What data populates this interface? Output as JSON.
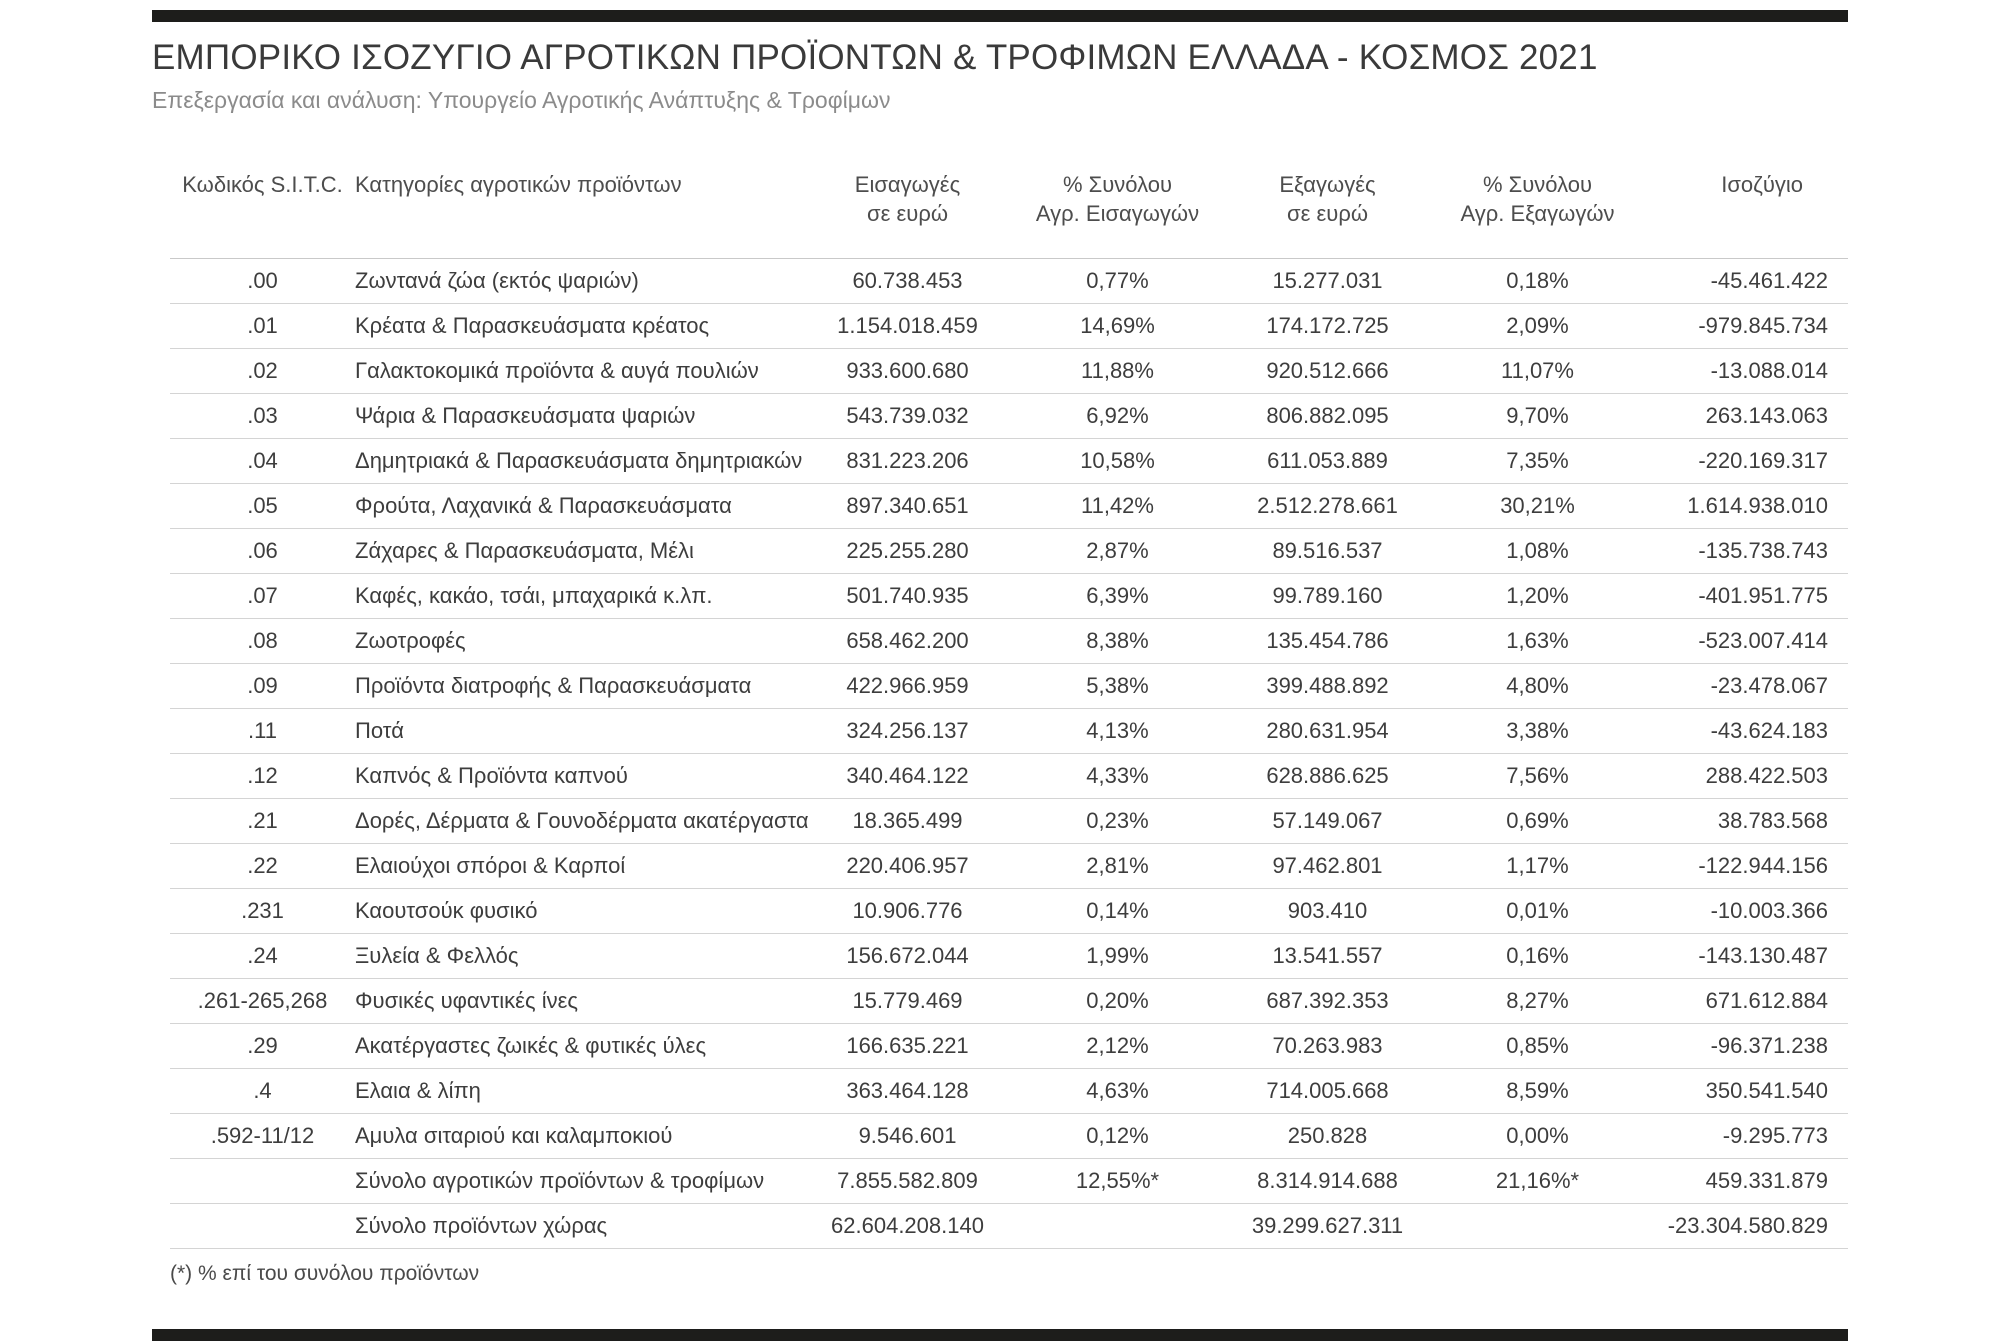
{
  "page": {
    "title": "ΕΜΠΟΡΙΚΟ ΙΣΟΖΥΓΙΟ ΑΓΡΟΤΙΚΩΝ ΠΡΟΪΟΝΤΩΝ & ΤΡΟΦΙΜΩΝ ΕΛΛΑΔΑ - ΚΟΣΜΟΣ 2021",
    "subtitle": "Επεξεργασία και ανάλυση: Υπουργείο Αγροτικής Ανάπτυξης & Τροφίμων",
    "footnote": "(*) % επί του συνόλου προϊόντων",
    "accent_bar_color": "#1d1d1b"
  },
  "table": {
    "columns": [
      {
        "id": "code",
        "label_lines": [
          "Κωδικός S.I.T.C."
        ]
      },
      {
        "id": "category",
        "label_lines": [
          "Κατηγορίες αγροτικών προϊόντων"
        ]
      },
      {
        "id": "imports",
        "label_lines": [
          "Εισαγωγές",
          "σε ευρώ"
        ]
      },
      {
        "id": "imports_pct",
        "label_lines": [
          "% Συνόλου",
          "Αγρ. Εισαγωγών"
        ]
      },
      {
        "id": "exports",
        "label_lines": [
          "Εξαγωγές",
          "σε ευρώ"
        ]
      },
      {
        "id": "exports_pct",
        "label_lines": [
          "% Συνόλου",
          "Αγρ. Εξαγωγών"
        ]
      },
      {
        "id": "balance",
        "label_lines": [
          "Ισοζύγιο"
        ]
      }
    ],
    "rows": [
      {
        "code": ".00",
        "category": "Ζωντανά ζώα (εκτός ψαριών)",
        "imports": "60.738.453",
        "imports_pct": "0,77%",
        "exports": "15.277.031",
        "exports_pct": "0,18%",
        "balance": "-45.461.422"
      },
      {
        "code": ".01",
        "category": "Κρέατα & Παρασκευάσματα κρέατος",
        "imports": "1.154.018.459",
        "imports_pct": "14,69%",
        "exports": "174.172.725",
        "exports_pct": "2,09%",
        "balance": "-979.845.734"
      },
      {
        "code": ".02",
        "category": "Γαλακτοκομικά προϊόντα & αυγά πουλιών",
        "imports": "933.600.680",
        "imports_pct": "11,88%",
        "exports": "920.512.666",
        "exports_pct": "11,07%",
        "balance": "-13.088.014"
      },
      {
        "code": ".03",
        "category": "Ψάρια & Παρασκευάσματα ψαριών",
        "imports": "543.739.032",
        "imports_pct": "6,92%",
        "exports": "806.882.095",
        "exports_pct": "9,70%",
        "balance": "263.143.063"
      },
      {
        "code": ".04",
        "category": "Δημητριακά & Παρασκευάσματα δημητριακών",
        "imports": "831.223.206",
        "imports_pct": "10,58%",
        "exports": "611.053.889",
        "exports_pct": "7,35%",
        "balance": "-220.169.317"
      },
      {
        "code": ".05",
        "category": "Φρούτα, Λαχανικά & Παρασκευάσματα",
        "imports": "897.340.651",
        "imports_pct": "11,42%",
        "exports": "2.512.278.661",
        "exports_pct": "30,21%",
        "balance": "1.614.938.010"
      },
      {
        "code": ".06",
        "category": "Ζάχαρες & Παρασκευάσματα, Μέλι",
        "imports": "225.255.280",
        "imports_pct": "2,87%",
        "exports": "89.516.537",
        "exports_pct": "1,08%",
        "balance": "-135.738.743"
      },
      {
        "code": ".07",
        "category": "Καφές, κακάο, τσάι, μπαχαρικά κ.λπ.",
        "imports": "501.740.935",
        "imports_pct": "6,39%",
        "exports": "99.789.160",
        "exports_pct": "1,20%",
        "balance": "-401.951.775"
      },
      {
        "code": ".08",
        "category": "Ζωοτροφές",
        "imports": "658.462.200",
        "imports_pct": "8,38%",
        "exports": "135.454.786",
        "exports_pct": "1,63%",
        "balance": "-523.007.414"
      },
      {
        "code": ".09",
        "category": "Προϊόντα διατροφής & Παρασκευάσματα",
        "imports": "422.966.959",
        "imports_pct": "5,38%",
        "exports": "399.488.892",
        "exports_pct": "4,80%",
        "balance": "-23.478.067"
      },
      {
        "code": ".11",
        "category": "Ποτά",
        "imports": "324.256.137",
        "imports_pct": "4,13%",
        "exports": "280.631.954",
        "exports_pct": "3,38%",
        "balance": "-43.624.183"
      },
      {
        "code": ".12",
        "category": "Καπνός & Προϊόντα καπνού",
        "imports": "340.464.122",
        "imports_pct": "4,33%",
        "exports": "628.886.625",
        "exports_pct": "7,56%",
        "balance": "288.422.503"
      },
      {
        "code": ".21",
        "category": "Δορές, Δέρματα & Γουνοδέρματα ακατέργαστα",
        "imports": "18.365.499",
        "imports_pct": "0,23%",
        "exports": "57.149.067",
        "exports_pct": "0,69%",
        "balance": "38.783.568"
      },
      {
        "code": ".22",
        "category": "Ελαιούχοι σπόροι & Καρποί",
        "imports": "220.406.957",
        "imports_pct": "2,81%",
        "exports": "97.462.801",
        "exports_pct": "1,17%",
        "balance": "-122.944.156"
      },
      {
        "code": ".231",
        "category": "Καουτσούκ φυσικό",
        "imports": "10.906.776",
        "imports_pct": "0,14%",
        "exports": "903.410",
        "exports_pct": "0,01%",
        "balance": "-10.003.366"
      },
      {
        "code": ".24",
        "category": "Ξυλεία & Φελλός",
        "imports": "156.672.044",
        "imports_pct": "1,99%",
        "exports": "13.541.557",
        "exports_pct": "0,16%",
        "balance": "-143.130.487"
      },
      {
        "code": ".261-265,268",
        "category": "Φυσικές υφαντικές ίνες",
        "imports": "15.779.469",
        "imports_pct": "0,20%",
        "exports": "687.392.353",
        "exports_pct": "8,27%",
        "balance": "671.612.884"
      },
      {
        "code": ".29",
        "category": "Ακατέργαστες ζωικές & φυτικές ύλες",
        "imports": "166.635.221",
        "imports_pct": "2,12%",
        "exports": "70.263.983",
        "exports_pct": "0,85%",
        "balance": "-96.371.238"
      },
      {
        "code": ".4",
        "category": "Ελαια & λίπη",
        "imports": "363.464.128",
        "imports_pct": "4,63%",
        "exports": "714.005.668",
        "exports_pct": "8,59%",
        "balance": "350.541.540"
      },
      {
        "code": ".592-11/12",
        "category": "Αμυλα σιταριού και καλαμποκιού",
        "imports": "9.546.601",
        "imports_pct": "0,12%",
        "exports": "250.828",
        "exports_pct": "0,00%",
        "balance": "-9.295.773"
      },
      {
        "code": "",
        "category": "Σύνολο αγροτικών προϊόντων & τροφίμων",
        "imports": "7.855.582.809",
        "imports_pct": "12,55%*",
        "exports": "8.314.914.688",
        "exports_pct": "21,16%*",
        "balance": "459.331.879"
      },
      {
        "code": "",
        "category": "Σύνολο προϊόντων χώρας",
        "imports": "62.604.208.140",
        "imports_pct": "",
        "exports": "39.299.627.311",
        "exports_pct": "",
        "balance": "-23.304.580.829"
      }
    ]
  }
}
